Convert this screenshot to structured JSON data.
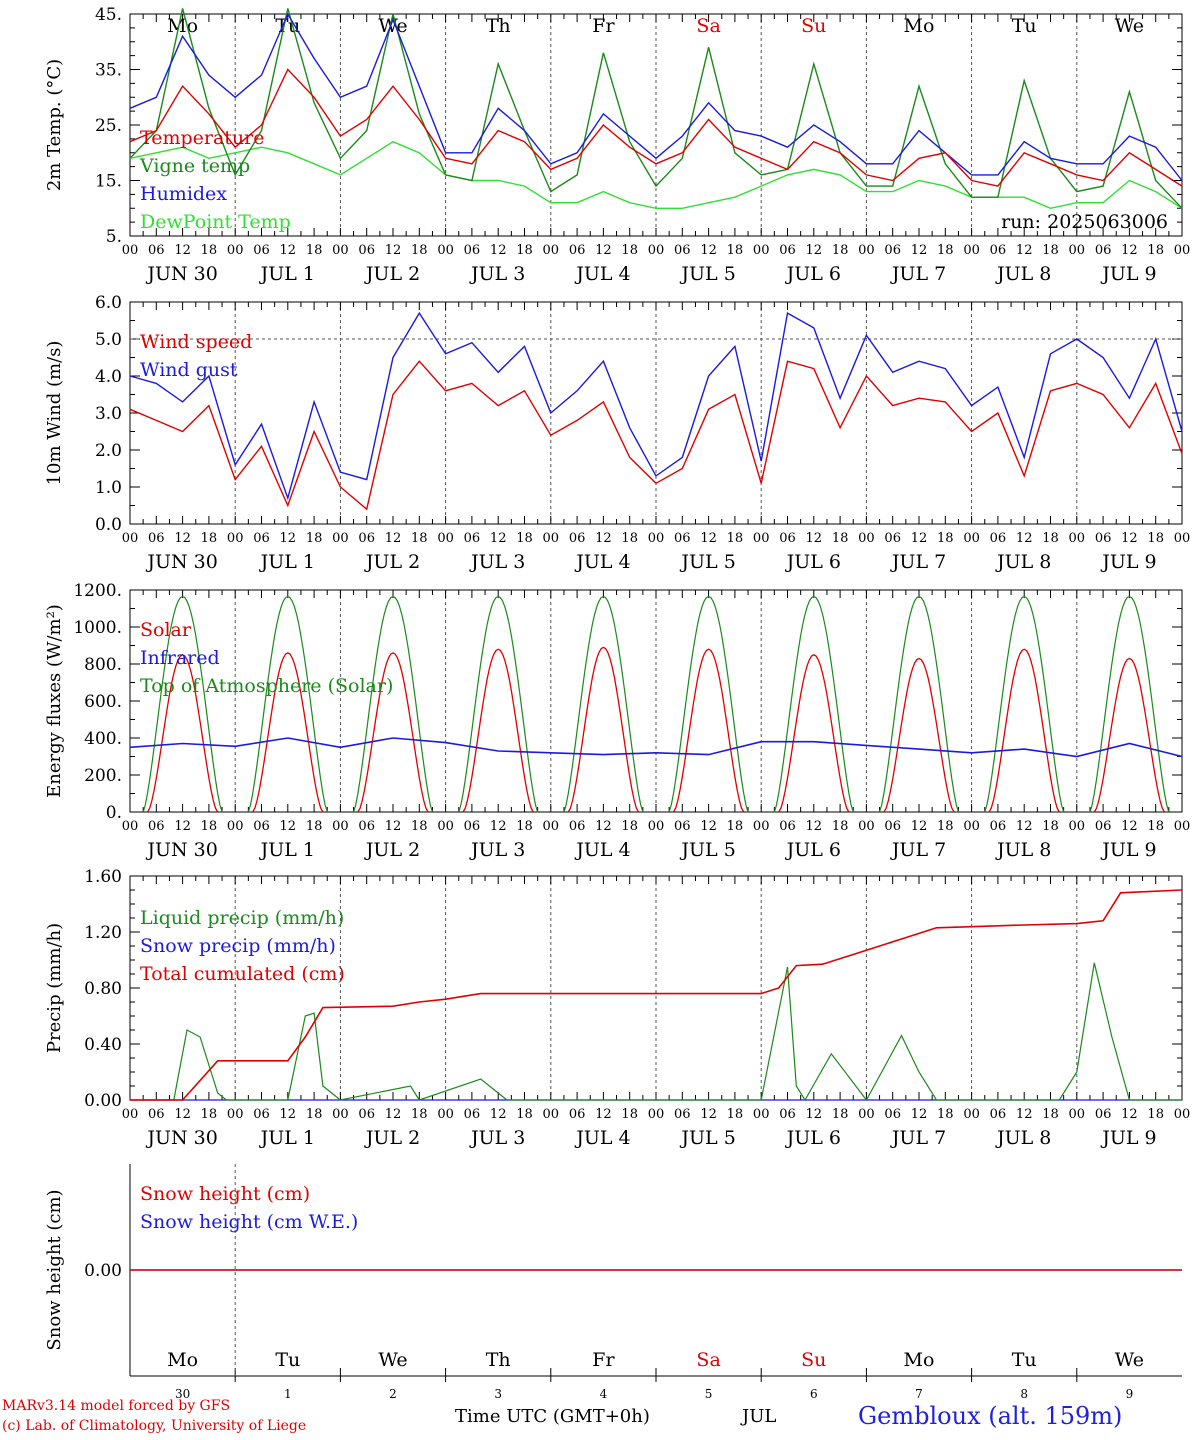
{
  "colors": {
    "red": "#e00000",
    "green": "#1a8a1a",
    "blue": "#1a1ae0",
    "lightgreen": "#30e030",
    "axis": "#000000",
    "grid": "#555555"
  },
  "run_label": "run: 2025063006",
  "weekdays": [
    {
      "label": "Mo",
      "weekend": false
    },
    {
      "label": "Tu",
      "weekend": false
    },
    {
      "label": "We",
      "weekend": false
    },
    {
      "label": "Th",
      "weekend": false
    },
    {
      "label": "Fr",
      "weekend": false
    },
    {
      "label": "Sa",
      "weekend": true
    },
    {
      "label": "Su",
      "weekend": true
    },
    {
      "label": "Mo",
      "weekend": false
    },
    {
      "label": "Tu",
      "weekend": false
    },
    {
      "label": "We",
      "weekend": false
    }
  ],
  "hour_ticks": [
    "00",
    "06",
    "12",
    "18"
  ],
  "day_labels": [
    "JUN 30",
    "JUL  1",
    "JUL  2",
    "JUL  3",
    "JUL  4",
    "JUL  5",
    "JUL  6",
    "JUL  7",
    "JUL  8",
    "JUL  9"
  ],
  "date_numbers": [
    "30",
    "1",
    "2",
    "3",
    "4",
    "5",
    "6",
    "7",
    "8",
    "9"
  ],
  "footer": {
    "credit_line1": "MARv3.14 model forced by GFS",
    "credit_line2": "(c) Lab. of Climatology, University of Liege",
    "time_label": "Time UTC (GMT+0h)",
    "month_label": "JUL",
    "station": "Gembloux (alt. 159m)"
  },
  "chart_data": [
    {
      "type": "line",
      "ylabel": "2m Temp. (°C)",
      "ylim": [
        5,
        45
      ],
      "yticks": [
        "5.",
        "15.",
        "25.",
        "35.",
        "45."
      ],
      "series": [
        {
          "name": "Temperature",
          "color": "red",
          "x": [
            0,
            6,
            12,
            18,
            24,
            30,
            36,
            42,
            48,
            54,
            60,
            66,
            72,
            78,
            84,
            90,
            96,
            102,
            108,
            114,
            120,
            126,
            132,
            138,
            144,
            150,
            156,
            162,
            168,
            174,
            180,
            186,
            192,
            198,
            204,
            210,
            216,
            222,
            228,
            234,
            240
          ],
          "values": [
            22,
            24,
            32,
            27,
            21,
            25,
            35,
            30,
            23,
            26,
            32,
            26,
            19,
            18,
            24,
            22,
            17,
            19,
            25,
            21,
            18,
            20,
            26,
            21,
            19,
            17,
            22,
            20,
            16,
            15,
            19,
            20,
            15,
            14,
            20,
            18,
            16,
            15,
            20,
            17,
            14
          ]
        },
        {
          "name": "Vigne temp",
          "color": "green",
          "x": [
            0,
            6,
            12,
            18,
            24,
            30,
            36,
            42,
            48,
            54,
            60,
            66,
            72,
            78,
            84,
            90,
            96,
            102,
            108,
            114,
            120,
            126,
            132,
            138,
            144,
            150,
            156,
            162,
            168,
            174,
            180,
            186,
            192,
            198,
            204,
            210,
            216,
            222,
            228,
            234,
            240
          ],
          "values": [
            19,
            24,
            46,
            28,
            16,
            24,
            46,
            29,
            19,
            24,
            45,
            27,
            16,
            15,
            36,
            24,
            13,
            16,
            38,
            22,
            14,
            19,
            39,
            20,
            16,
            17,
            36,
            20,
            14,
            14,
            32,
            18,
            12,
            12,
            33,
            19,
            13,
            14,
            31,
            15,
            10
          ]
        },
        {
          "name": "Humidex",
          "color": "blue",
          "x": [
            0,
            6,
            12,
            18,
            24,
            30,
            36,
            42,
            48,
            54,
            60,
            66,
            72,
            78,
            84,
            90,
            96,
            102,
            108,
            114,
            120,
            126,
            132,
            138,
            144,
            150,
            156,
            162,
            168,
            174,
            180,
            186,
            192,
            198,
            204,
            210,
            216,
            222,
            228,
            234,
            240
          ],
          "values": [
            28,
            30,
            41,
            34,
            30,
            34,
            45,
            37,
            30,
            32,
            44,
            32,
            20,
            20,
            28,
            24,
            18,
            20,
            27,
            23,
            19,
            23,
            29,
            24,
            23,
            21,
            25,
            22,
            18,
            18,
            24,
            20,
            16,
            16,
            22,
            19,
            18,
            18,
            23,
            21,
            15
          ]
        },
        {
          "name": "DewPoint Temp",
          "color": "lightgreen",
          "x": [
            0,
            6,
            12,
            18,
            24,
            30,
            36,
            42,
            48,
            54,
            60,
            66,
            72,
            78,
            84,
            90,
            96,
            102,
            108,
            114,
            120,
            126,
            132,
            138,
            144,
            150,
            156,
            162,
            168,
            174,
            180,
            186,
            192,
            198,
            204,
            210,
            216,
            222,
            228,
            234,
            240
          ],
          "values": [
            19,
            20,
            21,
            19,
            20,
            21,
            20,
            18,
            16,
            19,
            22,
            20,
            16,
            15,
            15,
            14,
            11,
            11,
            13,
            11,
            10,
            10,
            11,
            12,
            14,
            16,
            17,
            16,
            13,
            13,
            15,
            14,
            12,
            12,
            12,
            10,
            11,
            11,
            15,
            13,
            10
          ]
        }
      ]
    },
    {
      "type": "line",
      "ylabel": "10m Wind (m/s)",
      "ylim": [
        0,
        6
      ],
      "yticks": [
        "0.0",
        "1.0",
        "2.0",
        "3.0",
        "4.0",
        "5.0",
        "6.0"
      ],
      "series": [
        {
          "name": "Wind speed",
          "color": "red",
          "x": [
            0,
            6,
            12,
            18,
            24,
            30,
            36,
            42,
            48,
            54,
            60,
            66,
            72,
            78,
            84,
            90,
            96,
            102,
            108,
            114,
            120,
            126,
            132,
            138,
            144,
            150,
            156,
            162,
            168,
            174,
            180,
            186,
            192,
            198,
            204,
            210,
            216,
            222,
            228,
            234,
            240
          ],
          "values": [
            3.1,
            2.8,
            2.5,
            3.2,
            1.2,
            2.1,
            0.5,
            2.5,
            1.0,
            0.4,
            3.5,
            4.4,
            3.6,
            3.8,
            3.2,
            3.6,
            2.4,
            2.8,
            3.3,
            1.8,
            1.1,
            1.5,
            3.1,
            3.5,
            1.1,
            4.4,
            4.2,
            2.6,
            4.0,
            3.2,
            3.4,
            3.3,
            2.5,
            3.0,
            1.3,
            3.6,
            3.8,
            3.5,
            2.6,
            3.8,
            1.9
          ]
        },
        {
          "name": "Wind gust",
          "color": "blue",
          "x": [
            0,
            6,
            12,
            18,
            24,
            30,
            36,
            42,
            48,
            54,
            60,
            66,
            72,
            78,
            84,
            90,
            96,
            102,
            108,
            114,
            120,
            126,
            132,
            138,
            144,
            150,
            156,
            162,
            168,
            174,
            180,
            186,
            192,
            198,
            204,
            210,
            216,
            222,
            228,
            234,
            240
          ],
          "values": [
            4.0,
            3.8,
            3.3,
            4.0,
            1.6,
            2.7,
            0.7,
            3.3,
            1.4,
            1.2,
            4.5,
            5.7,
            4.6,
            4.9,
            4.1,
            4.8,
            3.0,
            3.6,
            4.4,
            2.6,
            1.3,
            1.8,
            4.0,
            4.8,
            1.7,
            5.7,
            5.3,
            3.4,
            5.1,
            4.1,
            4.4,
            4.2,
            3.2,
            3.7,
            1.8,
            4.6,
            5.0,
            4.5,
            3.4,
            5.0,
            2.5
          ]
        }
      ]
    },
    {
      "type": "line",
      "ylabel": "Energy fluxes (W/m²)",
      "ylim": [
        0,
        1200
      ],
      "yticks": [
        "0.",
        "200.",
        "400.",
        "600.",
        "800.",
        "1000.",
        "1200."
      ],
      "series": [
        {
          "name": "Solar",
          "color": "red",
          "daily_peaks": [
            850,
            860,
            860,
            880,
            890,
            880,
            850,
            830,
            880,
            830
          ]
        },
        {
          "name": "Infrared",
          "color": "blue",
          "x": [
            0,
            12,
            24,
            36,
            48,
            60,
            72,
            84,
            96,
            108,
            120,
            132,
            144,
            156,
            168,
            180,
            192,
            204,
            216,
            228,
            240
          ],
          "values": [
            350,
            370,
            355,
            400,
            350,
            400,
            375,
            330,
            320,
            310,
            320,
            310,
            380,
            380,
            360,
            340,
            320,
            340,
            300,
            370,
            300
          ]
        },
        {
          "name": "Top of Atmosphere (Solar)",
          "color": "green",
          "daily_peak": 1165
        }
      ]
    },
    {
      "type": "line",
      "ylabel": "Precip (mm/h)",
      "ylim": [
        0,
        1.6
      ],
      "yticks": [
        "0.00",
        "0.40",
        "0.80",
        "1.20",
        "1.60"
      ],
      "series": [
        {
          "name": "Liquid precip (mm/h)",
          "color": "green",
          "x": [
            0,
            10,
            13,
            16,
            20,
            22,
            36,
            40,
            42,
            44,
            48,
            64,
            66,
            80,
            86,
            144,
            150,
            152,
            154,
            160,
            168,
            176,
            180,
            184,
            212,
            216,
            220,
            224,
            228,
            240
          ],
          "values": [
            0,
            0,
            0.5,
            0.45,
            0.05,
            0,
            0,
            0.6,
            0.62,
            0.1,
            0,
            0.1,
            0,
            0.15,
            0,
            0,
            0.95,
            0.1,
            0,
            0.33,
            0,
            0.46,
            0.2,
            0,
            0,
            0.2,
            0.98,
            0.45,
            0,
            0
          ]
        },
        {
          "name": "Snow precip (mm/h)",
          "color": "blue",
          "x": [
            0,
            240
          ],
          "values": [
            0,
            0
          ]
        },
        {
          "name": "Total cumulated (cm)",
          "color": "red",
          "x": [
            0,
            12,
            20,
            36,
            40,
            44,
            60,
            66,
            72,
            80,
            96,
            144,
            148,
            152,
            158,
            168,
            176,
            184,
            204,
            216,
            222,
            226,
            240
          ],
          "values": [
            0,
            0,
            0.28,
            0.28,
            0.45,
            0.66,
            0.67,
            0.7,
            0.72,
            0.76,
            0.76,
            0.76,
            0.8,
            0.96,
            0.97,
            1.07,
            1.15,
            1.23,
            1.25,
            1.26,
            1.28,
            1.48,
            1.5
          ]
        }
      ]
    },
    {
      "type": "line",
      "ylabel": "Snow height (cm)",
      "yticks": [
        "0.00"
      ],
      "series": [
        {
          "name": "Snow height (cm)",
          "color": "red",
          "x": [
            0,
            240
          ],
          "values": [
            0,
            0
          ]
        },
        {
          "name": "Snow height (cm W.E.)",
          "color": "blue",
          "x": [
            0,
            240
          ],
          "values": [
            0,
            0
          ]
        }
      ]
    }
  ]
}
